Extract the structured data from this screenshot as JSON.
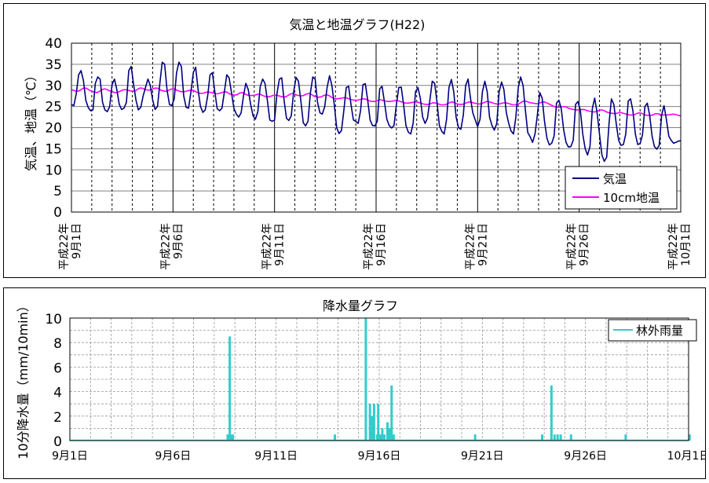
{
  "chart_data": [
    {
      "type": "line",
      "title": "気温と地温グラフ(H22)",
      "ylabel": "気温、地温（℃）",
      "xlabel": "",
      "ylim": [
        0,
        40
      ],
      "yticks": [
        0,
        5,
        10,
        15,
        20,
        25,
        30,
        35,
        40
      ],
      "xlim_days": [
        1,
        31
      ],
      "x_tick_labels": [
        {
          "day": 1,
          "lines": [
            "平成22年",
            "9月1日"
          ]
        },
        {
          "day": 6,
          "lines": [
            "平成22年",
            "9月6日"
          ]
        },
        {
          "day": 11,
          "lines": [
            "平成22年",
            "9月11日"
          ]
        },
        {
          "day": 16,
          "lines": [
            "平成22年",
            "9月16日"
          ]
        },
        {
          "day": 21,
          "lines": [
            "平成22年",
            "9月21日"
          ]
        },
        {
          "day": 26,
          "lines": [
            "平成22年",
            "9月26日"
          ]
        },
        {
          "day": 31,
          "lines": [
            "平成22年",
            "10月1日"
          ]
        }
      ],
      "grid": true,
      "legend_position": "bottom-right",
      "series": [
        {
          "name": "気温",
          "color": "#000080",
          "daily_min": [
            24.5,
            23.5,
            24,
            24.5,
            25,
            24.5,
            23.5,
            24,
            23.5,
            22,
            21.5,
            20.5,
            23,
            18.5,
            21.5,
            20.5,
            19.5,
            18.5,
            20,
            18.5,
            20,
            19,
            17.5,
            15.5,
            15,
            13.5,
            12,
            15.5,
            16,
            15,
            16.5
          ],
          "daily_max": [
            33.5,
            32,
            33.5,
            32,
            35.5,
            35.5,
            33,
            32.5,
            31,
            31.5,
            32,
            32,
            32,
            30,
            30,
            30,
            30,
            29.5,
            31,
            31.5,
            31,
            31,
            32,
            28.5,
            26.5,
            25,
            27,
            27,
            26,
            25.5,
            17
          ],
          "values": [
            25.5,
            25.2,
            28,
            32.5,
            33.5,
            31.2,
            26.5,
            24.8,
            24,
            24.2,
            30.5,
            32,
            31.5,
            26,
            24.2,
            23.8,
            25,
            30.2,
            31.5,
            29,
            25.5,
            24.3,
            24.6,
            26,
            33.5,
            34.5,
            30.3,
            26.5,
            24.2,
            24.8,
            27.5,
            29.5,
            31.5,
            30,
            26.5,
            24.3,
            25,
            30.5,
            35.5,
            35,
            29,
            25.5,
            25.2,
            26.8,
            33,
            35.5,
            34.5,
            27.5,
            24.8,
            24.6,
            28.5,
            33,
            34.3,
            29,
            25,
            23.6,
            24.2,
            27.5,
            32.5,
            33,
            28.5,
            24.5,
            24,
            24.6,
            28.5,
            32.5,
            31.8,
            28.2,
            24.6,
            23.2,
            22.5,
            23.5,
            27.5,
            30.5,
            29,
            25.5,
            22.8,
            22,
            23.8,
            29.7,
            31.5,
            30.5,
            26.5,
            21.8,
            21.5,
            21.8,
            28,
            31.5,
            31.8,
            26.5,
            22.2,
            21.7,
            22.8,
            28.5,
            31.9,
            31,
            26.5,
            21.2,
            20.4,
            21.5,
            28.2,
            32,
            31.5,
            26,
            23.5,
            23.2,
            25,
            29.5,
            32.3,
            30,
            25.5,
            20,
            18.6,
            19.3,
            24,
            29.5,
            29.8,
            25.5,
            21.8,
            21.5,
            21,
            24,
            30.2,
            30.4,
            26.5,
            21.8,
            20.5,
            20.4,
            21.5,
            29.2,
            29.8,
            26,
            22,
            20.5,
            19.9,
            20.5,
            25.5,
            29.5,
            29.6,
            25.5,
            20.5,
            18.9,
            18.5,
            21,
            28.5,
            29.5,
            27,
            22.5,
            21,
            22.2,
            26.5,
            31,
            30.5,
            26,
            20.5,
            19.1,
            18.5,
            22,
            29.5,
            31.4,
            28.5,
            22.5,
            20,
            19.6,
            23,
            30,
            31.5,
            27,
            23.5,
            21.8,
            20.2,
            22,
            28.5,
            31,
            28.5,
            22.5,
            20.5,
            19.4,
            21,
            28.5,
            30.8,
            29,
            23.5,
            21,
            19.2,
            18.5,
            22.5,
            29.5,
            32,
            30,
            24,
            18.8,
            17.8,
            16.5,
            18.5,
            23,
            28.3,
            27,
            21.5,
            17.5,
            15.9,
            16.3,
            18,
            25.8,
            26.5,
            24.5,
            19.5,
            16.5,
            15.4,
            15.5,
            17,
            25.5,
            26.2,
            24,
            18.5,
            15,
            13.5,
            15.5,
            24.5,
            27,
            23.5,
            18.5,
            13.5,
            12,
            13,
            21,
            26.8,
            25.5,
            21,
            17,
            15.8,
            16,
            18.5,
            26.3,
            26.8,
            24,
            18.5,
            16,
            16.2,
            18.3,
            25,
            25.8,
            23,
            18,
            15.5,
            14.9,
            15.8,
            23,
            25.2,
            22,
            18,
            17,
            16.3,
            16.5,
            16.8,
            16.9
          ]
        },
        {
          "name": "10cm地温",
          "color": "#FF00FF",
          "daily_min": [
            28.5,
            28.5,
            28,
            28,
            28.5,
            28.5,
            28.5,
            28,
            27.5,
            27.5,
            27,
            27.5,
            27.5,
            26.5,
            26,
            26,
            25,
            25.5,
            25.5,
            25.5,
            25,
            25.5,
            25,
            24,
            23.5,
            23,
            23,
            22.5,
            23,
            22.5,
            22.5
          ],
          "daily_max": [
            29,
            29.5,
            29,
            29.5,
            29.5,
            29.5,
            29.5,
            29,
            28.5,
            28,
            28,
            28,
            28,
            27.5,
            27,
            26.5,
            26.5,
            26.5,
            26.5,
            26.5,
            26.5,
            26.5,
            26,
            25,
            24.5,
            24,
            24,
            23.5,
            23.5,
            23.5,
            23
          ],
          "values": [
            29,
            28.8,
            28.6,
            28.7,
            29.1,
            29.4,
            29.3,
            28.9,
            28.6,
            28.4,
            28.3,
            28.6,
            29,
            29.2,
            29,
            28.7,
            28.5,
            28.3,
            28.3,
            28.6,
            28.9,
            29,
            28.9,
            28.7,
            28.6,
            28.7,
            29.1,
            29.4,
            29.3,
            29,
            28.9,
            28.9,
            29.2,
            29.4,
            29.3,
            28.9,
            28.7,
            28.6,
            28.8,
            29.1,
            29.2,
            29,
            28.7,
            28.5,
            28.5,
            28.6,
            28.8,
            28.9,
            28.8,
            28.4,
            28.2,
            28.1,
            28.2,
            28.4,
            28.4,
            28.3,
            28.1,
            28,
            28.1,
            28.3,
            28.5,
            28.4,
            28,
            27.8,
            27.7,
            27.8,
            28.2,
            28.3,
            28,
            27.7,
            27.6,
            27.6,
            27.7,
            27.9,
            27.9,
            27.6,
            27.4,
            27.3,
            27.4,
            27.6,
            27.7,
            27.6,
            27.4,
            27.3,
            27.3,
            27.6,
            28,
            28.1,
            27.8,
            27.6,
            27.5,
            27.6,
            27.9,
            28.1,
            27.9,
            27.5,
            27.3,
            27.2,
            27.3,
            27.6,
            27.8,
            27.6,
            27.2,
            26.9,
            26.8,
            26.9,
            27,
            27.1,
            27,
            26.8,
            26.6,
            26.5,
            26.5,
            26.6,
            26.8,
            26.8,
            26.6,
            26.3,
            26.2,
            26.2,
            26.4,
            26.6,
            26.5,
            26.3,
            26.2,
            26.2,
            26.3,
            26.4,
            26.4,
            26.2,
            26,
            25.8,
            25.8,
            25.9,
            26,
            26.1,
            26,
            25.8,
            25.6,
            25.5,
            25.5,
            25.7,
            25.9,
            25.8,
            25.6,
            25.4,
            25.4,
            25.5,
            25.8,
            26.1,
            26,
            25.7,
            25.5,
            25.5,
            25.6,
            25.9,
            26.1,
            26,
            25.8,
            25.7,
            25.6,
            25.7,
            26,
            26.2,
            26.1,
            25.9,
            25.7,
            25.6,
            25.6,
            25.8,
            25.9,
            25.8,
            25.6,
            25.4,
            25.4,
            25.5,
            25.8,
            26.2,
            26.3,
            26.1,
            25.9,
            25.8,
            25.7,
            25.7,
            25.9,
            26.1,
            26,
            25.7,
            25.4,
            25.1,
            24.9,
            24.8,
            24.9,
            25,
            24.9,
            24.6,
            24.4,
            24.3,
            24.2,
            24.2,
            24.3,
            24.3,
            24.1,
            23.9,
            23.8,
            23.7,
            23.8,
            24.1,
            24.2,
            24,
            23.7,
            23.5,
            23.4,
            23.3,
            23.4,
            23.6,
            23.5,
            23.3,
            23.1,
            23,
            23,
            23.1,
            23.4,
            23.5,
            23.3,
            23,
            22.9,
            22.9,
            23,
            23.3,
            23.3,
            23.1,
            23,
            23,
            23,
            23.1,
            23.2,
            23.1,
            22.9,
            22.8
          ]
        }
      ]
    },
    {
      "type": "bar",
      "title": "降水量グラフ",
      "ylabel": "10分降水量（mm/10min）",
      "xlabel": "",
      "ylim": [
        0,
        10
      ],
      "yticks": [
        0,
        2,
        4,
        6,
        8,
        10
      ],
      "xlim_days": [
        1,
        31
      ],
      "x_tick_labels": [
        {
          "day": 1,
          "label": "9月1日"
        },
        {
          "day": 6,
          "label": "9月6日"
        },
        {
          "day": 11,
          "label": "9月11日"
        },
        {
          "day": 16,
          "label": "9月16日"
        },
        {
          "day": 21,
          "label": "9月21日"
        },
        {
          "day": 26,
          "label": "9月26日"
        },
        {
          "day": 31,
          "label": "10月1日"
        }
      ],
      "grid": true,
      "legend_position": "top-right",
      "series": [
        {
          "name": "林外雨量",
          "color": "#33CCCC",
          "points": [
            {
              "day": 8.65,
              "value": 0.5
            },
            {
              "day": 8.75,
              "value": 8.5
            },
            {
              "day": 8.8,
              "value": 0.5
            },
            {
              "day": 8.9,
              "value": 0.5
            },
            {
              "day": 13.85,
              "value": 0.5
            },
            {
              "day": 15.35,
              "value": 10
            },
            {
              "day": 15.55,
              "value": 3
            },
            {
              "day": 15.65,
              "value": 2
            },
            {
              "day": 15.75,
              "value": 3
            },
            {
              "day": 15.9,
              "value": 0.5
            },
            {
              "day": 15.95,
              "value": 3
            },
            {
              "day": 16.05,
              "value": 0.5
            },
            {
              "day": 16.15,
              "value": 1
            },
            {
              "day": 16.25,
              "value": 0.5
            },
            {
              "day": 16.4,
              "value": 1.5
            },
            {
              "day": 16.5,
              "value": 1
            },
            {
              "day": 16.6,
              "value": 4.5
            },
            {
              "day": 16.7,
              "value": 0.5
            },
            {
              "day": 20.65,
              "value": 0.5
            },
            {
              "day": 23.9,
              "value": 0.5
            },
            {
              "day": 24.35,
              "value": 4.5
            },
            {
              "day": 24.5,
              "value": 0.5
            },
            {
              "day": 24.65,
              "value": 0.5
            },
            {
              "day": 24.8,
              "value": 0.5
            },
            {
              "day": 25.3,
              "value": 0.5
            },
            {
              "day": 27.95,
              "value": 0.5
            },
            {
              "day": 31.05,
              "value": 0.5
            }
          ]
        }
      ]
    }
  ]
}
